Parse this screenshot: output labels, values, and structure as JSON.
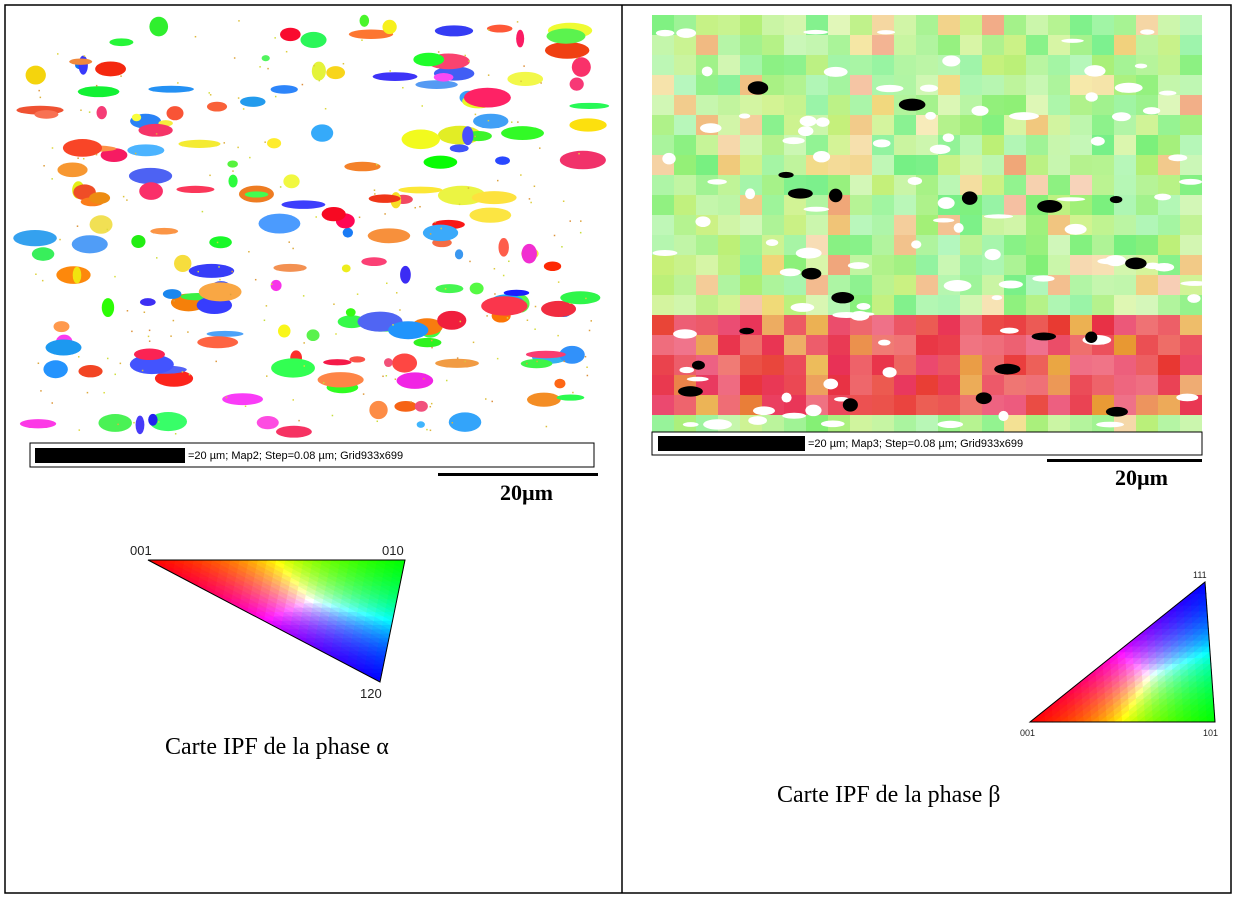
{
  "panels": [
    {
      "scale_info": "=20 µm; Map2; Step=0.08 µm; Grid933x699",
      "scale_label": "20µm",
      "ipf_labels": [
        "001",
        "010",
        "120"
      ],
      "caption": "Carte IPF de la phase α"
    },
    {
      "scale_info": "=20 µm; Map3; Step=0.08 µm; Grid933x699",
      "scale_label": "20µm",
      "ipf_labels": [
        "111",
        "001",
        "101"
      ],
      "caption": "Carte IPF de la phase β"
    }
  ]
}
